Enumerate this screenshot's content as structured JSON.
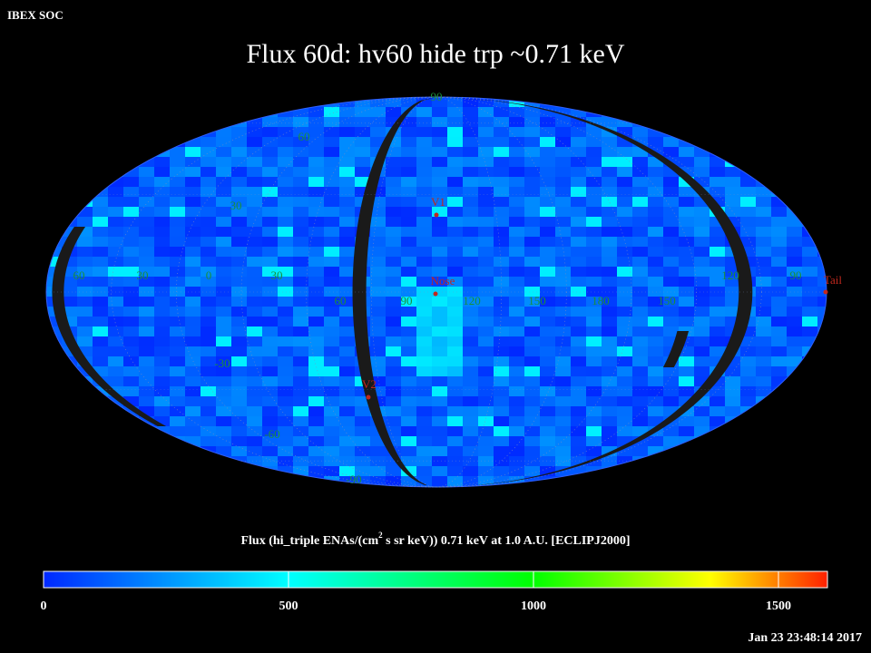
{
  "header": "IBEX SOC",
  "title": "Flux   60d: hv60 hide trp ~0.71 keV",
  "map": {
    "latitude_labels": [
      "90",
      "60",
      "30",
      "-30",
      "-60",
      "-90"
    ],
    "longitude_labels": [
      "60",
      "30",
      "0",
      "30",
      "60",
      "90",
      "120",
      "150",
      "180",
      "150",
      "120",
      "90"
    ],
    "markers": [
      "V1",
      "Nose",
      "V2",
      "Tail"
    ]
  },
  "colorbar": {
    "label": "Flux (hi_triple ENAs/(cm",
    "label_sup": "2",
    "label_rest": " s sr keV))  0.71 keV at 1.0 A.U. [ECLIPJ2000]",
    "range": [
      0,
      1600
    ],
    "ticks": [
      0,
      500,
      1000,
      1500
    ]
  },
  "timestamp": "Jan 23 23:48:14 2017"
}
